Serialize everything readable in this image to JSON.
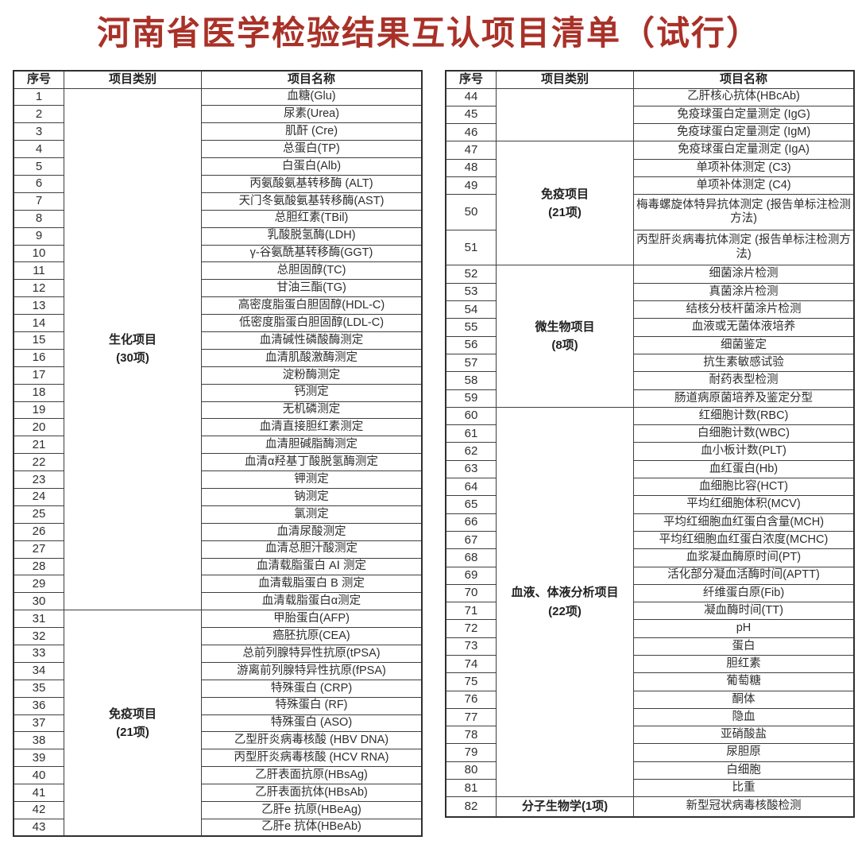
{
  "title": "河南省医学检验结果互认项目清单（试行）",
  "colors": {
    "title": "#a93128",
    "border": "#3f3f3f",
    "text": "#2e2e2e"
  },
  "columns": [
    "序号",
    "项目类别",
    "项目名称"
  ],
  "left_table": {
    "groups": [
      {
        "category": "生化项目",
        "count": "(30项)",
        "rows": [
          {
            "no": "1",
            "name": "血糖(Glu)"
          },
          {
            "no": "2",
            "name": "尿素(Urea)"
          },
          {
            "no": "3",
            "name": "肌酐 (Cre)"
          },
          {
            "no": "4",
            "name": "总蛋白(TP)"
          },
          {
            "no": "5",
            "name": "白蛋白(Alb)"
          },
          {
            "no": "6",
            "name": "丙氨酸氨基转移酶 (ALT)"
          },
          {
            "no": "7",
            "name": "天门冬氨酸氨基转移酶(AST)"
          },
          {
            "no": "8",
            "name": "总胆红素(TBil)"
          },
          {
            "no": "9",
            "name": "乳酸脱氢酶(LDH)"
          },
          {
            "no": "10",
            "name": "γ-谷氨酰基转移酶(GGT)"
          },
          {
            "no": "11",
            "name": "总胆固醇(TC)"
          },
          {
            "no": "12",
            "name": "甘油三酯(TG)"
          },
          {
            "no": "13",
            "name": "高密度脂蛋白胆固醇(HDL-C)"
          },
          {
            "no": "14",
            "name": "低密度脂蛋白胆固醇(LDL-C)"
          },
          {
            "no": "15",
            "name": "血清碱性磷酸酶测定"
          },
          {
            "no": "16",
            "name": "血清肌酸激酶测定"
          },
          {
            "no": "17",
            "name": "淀粉酶测定"
          },
          {
            "no": "18",
            "name": "钙测定"
          },
          {
            "no": "19",
            "name": "无机磷测定"
          },
          {
            "no": "20",
            "name": "血清直接胆红素测定"
          },
          {
            "no": "21",
            "name": "血清胆碱脂酶测定"
          },
          {
            "no": "22",
            "name": "血清α羟基丁酸脱氢酶测定"
          },
          {
            "no": "23",
            "name": "钾测定"
          },
          {
            "no": "24",
            "name": "钠测定"
          },
          {
            "no": "25",
            "name": "氯测定"
          },
          {
            "no": "26",
            "name": "血清尿酸测定"
          },
          {
            "no": "27",
            "name": "血清总胆汁酸测定"
          },
          {
            "no": "28",
            "name": "血清载脂蛋白 AⅠ 测定"
          },
          {
            "no": "29",
            "name": "血清载脂蛋白 B 测定"
          },
          {
            "no": "30",
            "name": "血清载脂蛋白α测定"
          }
        ]
      },
      {
        "category": "免疫项目",
        "count": "(21项)",
        "rows": [
          {
            "no": "31",
            "name": "甲胎蛋白(AFP)"
          },
          {
            "no": "32",
            "name": "癌胚抗原(CEA)"
          },
          {
            "no": "33",
            "name": "总前列腺特异性抗原(tPSA)"
          },
          {
            "no": "34",
            "name": "游离前列腺特异性抗原(fPSA)"
          },
          {
            "no": "35",
            "name": "特殊蛋白 (CRP)"
          },
          {
            "no": "36",
            "name": "特殊蛋白 (RF)"
          },
          {
            "no": "37",
            "name": "特殊蛋白 (ASO)"
          },
          {
            "no": "38",
            "name": "乙型肝炎病毒核酸 (HBV DNA)"
          },
          {
            "no": "39",
            "name": "丙型肝炎病毒核酸 (HCV RNA)"
          },
          {
            "no": "40",
            "name": "乙肝表面抗原(HBsAg)"
          },
          {
            "no": "41",
            "name": "乙肝表面抗体(HBsAb)"
          },
          {
            "no": "42",
            "name": "乙肝e 抗原(HBeAg)"
          },
          {
            "no": "43",
            "name": "乙肝e 抗体(HBeAb)"
          }
        ]
      }
    ]
  },
  "right_table": {
    "groups": [
      {
        "category": "",
        "count": "",
        "rows": [
          {
            "no": "44",
            "name": "乙肝核心抗体(HBcAb)"
          },
          {
            "no": "45",
            "name": "免疫球蛋白定量测定 (IgG)"
          },
          {
            "no": "46",
            "name": "免疫球蛋白定量测定 (IgM)"
          }
        ]
      },
      {
        "category": "免疫项目",
        "count": "(21项)",
        "rows": [
          {
            "no": "47",
            "name": "免疫球蛋白定量测定 (IgA)"
          },
          {
            "no": "48",
            "name": "单项补体测定 (C3)"
          },
          {
            "no": "49",
            "name": "单项补体测定 (C4)"
          },
          {
            "no": "50",
            "name": "梅毒螺旋体特异抗体测定 (报告单标注检测方法)",
            "tall": true
          },
          {
            "no": "51",
            "name": "丙型肝炎病毒抗体测定 (报告单标注检测方法)",
            "tall": true
          }
        ]
      },
      {
        "category": "微生物项目",
        "count": "(8项)",
        "rows": [
          {
            "no": "52",
            "name": "细菌涂片检测"
          },
          {
            "no": "53",
            "name": "真菌涂片检测"
          },
          {
            "no": "54",
            "name": "结核分枝杆菌涂片检测"
          },
          {
            "no": "55",
            "name": "血液或无菌体液培养"
          },
          {
            "no": "56",
            "name": "细菌鉴定"
          },
          {
            "no": "57",
            "name": "抗生素敏感试验"
          },
          {
            "no": "58",
            "name": "耐药表型检测"
          },
          {
            "no": "59",
            "name": "肠道病原菌培养及鉴定分型"
          }
        ]
      },
      {
        "category": "血液、体液分析项目",
        "count": "(22项)",
        "rows": [
          {
            "no": "60",
            "name": "红细胞计数(RBC)"
          },
          {
            "no": "61",
            "name": "白细胞计数(WBC)"
          },
          {
            "no": "62",
            "name": "血小板计数(PLT)"
          },
          {
            "no": "63",
            "name": "血红蛋白(Hb)"
          },
          {
            "no": "64",
            "name": "血细胞比容(HCT)"
          },
          {
            "no": "65",
            "name": "平均红细胞体积(MCV)"
          },
          {
            "no": "66",
            "name": "平均红细胞血红蛋白含量(MCH)"
          },
          {
            "no": "67",
            "name": "平均红细胞血红蛋白浓度(MCHC)"
          },
          {
            "no": "68",
            "name": "血浆凝血酶原时间(PT)"
          },
          {
            "no": "69",
            "name": "活化部分凝血活酶时间(APTT)"
          },
          {
            "no": "70",
            "name": "纤维蛋白原(Fib)"
          },
          {
            "no": "71",
            "name": "凝血酶时间(TT)"
          },
          {
            "no": "72",
            "name": "pH"
          },
          {
            "no": "73",
            "name": "蛋白"
          },
          {
            "no": "74",
            "name": "胆红素"
          },
          {
            "no": "75",
            "name": "葡萄糖"
          },
          {
            "no": "76",
            "name": "酮体"
          },
          {
            "no": "77",
            "name": "隐血"
          },
          {
            "no": "78",
            "name": "亚硝酸盐"
          },
          {
            "no": "79",
            "name": "尿胆原"
          },
          {
            "no": "80",
            "name": "白细胞"
          },
          {
            "no": "81",
            "name": "比重"
          }
        ]
      },
      {
        "category": "分子生物学(1项)",
        "count": "",
        "rows": [
          {
            "no": "82",
            "name": "新型冠状病毒核酸检测"
          }
        ]
      }
    ]
  }
}
